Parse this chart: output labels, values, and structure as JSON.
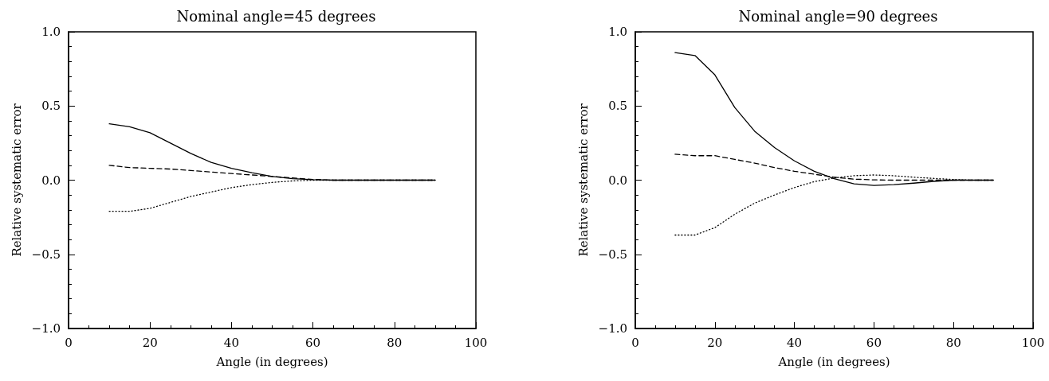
{
  "chart_data": [
    {
      "type": "line",
      "title": "Nominal angle=45 degrees",
      "xlabel": "Angle (in degrees)",
      "ylabel": "Relative systematic error",
      "x": [
        10,
        15,
        20,
        25,
        30,
        35,
        40,
        45,
        50,
        55,
        60,
        65,
        70,
        75,
        80,
        85,
        90
      ],
      "xlim": [
        0,
        100
      ],
      "xticks": [
        0,
        20,
        40,
        60,
        80,
        100
      ],
      "ylim": [
        -1,
        1
      ],
      "yticks": [
        {
          "value": -1,
          "label": "−1.0"
        },
        {
          "value": -0.5,
          "label": "−0.5"
        },
        {
          "value": 0,
          "label": "0.0"
        },
        {
          "value": 0.5,
          "label": "0.5"
        },
        {
          "value": 1,
          "label": "1.0"
        }
      ],
      "series": [
        {
          "color": "#000000",
          "line_style": "solid",
          "values": [
            0.38,
            0.36,
            0.32,
            0.25,
            0.18,
            0.12,
            0.08,
            0.05,
            0.025,
            0.01,
            0.003,
            0,
            0,
            0,
            0,
            0,
            0
          ]
        },
        {
          "color": "#000000",
          "line_style": "dashed",
          "values": [
            0.1,
            0.085,
            0.08,
            0.075,
            0.065,
            0.055,
            0.045,
            0.035,
            0.025,
            0.015,
            0.005,
            0,
            0,
            0,
            0,
            0,
            0
          ]
        },
        {
          "color": "#000000",
          "line_style": "dotted",
          "values": [
            -0.21,
            -0.21,
            -0.19,
            -0.15,
            -0.11,
            -0.08,
            -0.05,
            -0.03,
            -0.015,
            -0.005,
            0,
            0,
            0,
            0,
            0,
            0,
            0
          ]
        }
      ]
    },
    {
      "type": "line",
      "title": "Nominal angle=90 degrees",
      "xlabel": "Angle (in degrees)",
      "ylabel": "Relative systematic error",
      "x": [
        10,
        15,
        20,
        25,
        30,
        35,
        40,
        45,
        50,
        55,
        60,
        65,
        70,
        75,
        80,
        85,
        90
      ],
      "xlim": [
        0,
        100
      ],
      "xticks": [
        0,
        20,
        40,
        60,
        80,
        100
      ],
      "ylim": [
        -1,
        1
      ],
      "yticks": [
        {
          "value": -1,
          "label": "−1.0"
        },
        {
          "value": -0.5,
          "label": "−0.5"
        },
        {
          "value": 0,
          "label": "0.0"
        },
        {
          "value": 0.5,
          "label": "0.5"
        },
        {
          "value": 1,
          "label": "1.0"
        }
      ],
      "series": [
        {
          "color": "#000000",
          "line_style": "solid",
          "values": [
            0.86,
            0.84,
            0.71,
            0.49,
            0.33,
            0.22,
            0.13,
            0.06,
            0.01,
            -0.025,
            -0.035,
            -0.03,
            -0.02,
            -0.008,
            0,
            0,
            0
          ]
        },
        {
          "color": "#000000",
          "line_style": "dashed",
          "values": [
            0.175,
            0.165,
            0.165,
            0.14,
            0.115,
            0.085,
            0.06,
            0.04,
            0.02,
            0.007,
            0.002,
            0,
            0,
            0,
            0,
            0,
            0
          ]
        },
        {
          "color": "#000000",
          "line_style": "dotted",
          "values": [
            -0.37,
            -0.37,
            -0.32,
            -0.23,
            -0.155,
            -0.1,
            -0.05,
            -0.01,
            0.015,
            0.03,
            0.035,
            0.03,
            0.02,
            0.012,
            0.004,
            0,
            0
          ]
        }
      ]
    }
  ]
}
